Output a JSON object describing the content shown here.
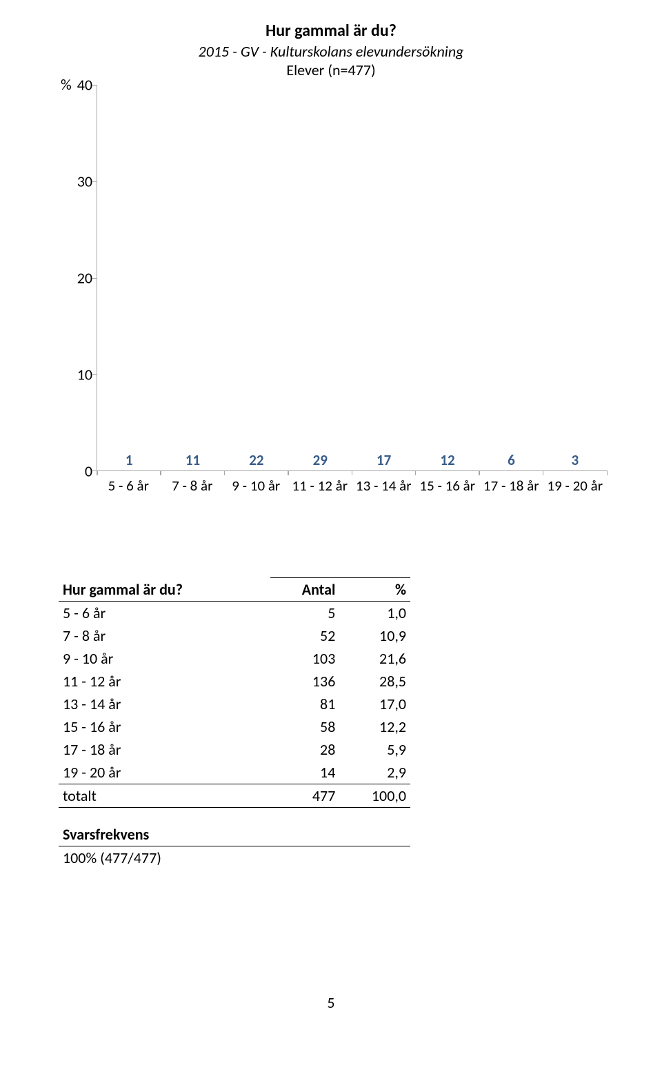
{
  "chart": {
    "title": "Hur gammal är du?",
    "subtitle": "2015 - GV - Kulturskolans elevundersökning",
    "sample": "Elever (n=477)",
    "y_unit": "%",
    "ylim": [
      0,
      40
    ],
    "ytick_step": 10,
    "yticks": [
      0,
      10,
      20,
      30,
      40
    ],
    "categories": [
      "5 - 6 år",
      "7 - 8 år",
      "9 - 10 år",
      "11 - 12 år",
      "13 - 14 år",
      "15 - 16 år",
      "17 - 18 år",
      "19 - 20 år"
    ],
    "values": [
      1,
      11,
      22,
      29,
      17,
      12,
      6,
      3
    ],
    "bar_color": "#4f81bd",
    "bar_label_color": "#385d8a",
    "axis_color": "#a6a6a6",
    "bar_width": 0.72,
    "background_color": "#ffffff",
    "title_fontsize": 24,
    "label_fontsize": 22
  },
  "table": {
    "header_question": "Hur gammal är du?",
    "header_count": "Antal",
    "header_pct": "%",
    "rows": [
      {
        "label": "5 - 6 år",
        "count": "5",
        "pct": "1,0"
      },
      {
        "label": "7 - 8 år",
        "count": "52",
        "pct": "10,9"
      },
      {
        "label": "9 - 10 år",
        "count": "103",
        "pct": "21,6"
      },
      {
        "label": "11 - 12 år",
        "count": "136",
        "pct": "28,5"
      },
      {
        "label": "13 - 14 år",
        "count": "81",
        "pct": "17,0"
      },
      {
        "label": "15 - 16 år",
        "count": "58",
        "pct": "12,2"
      },
      {
        "label": "17 - 18 år",
        "count": "28",
        "pct": "5,9"
      },
      {
        "label": "19 - 20 år",
        "count": "14",
        "pct": "2,9"
      }
    ],
    "total_label": "totalt",
    "total_count": "477",
    "total_pct": "100,0",
    "freq_header": "Svarsfrekvens",
    "freq_value": "100% (477/477)"
  },
  "page_number": "5"
}
